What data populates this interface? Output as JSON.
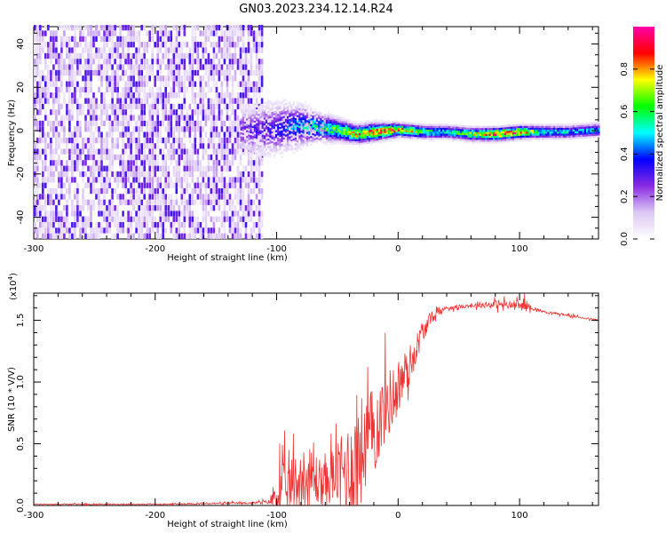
{
  "title": "GN03.2023.234.12.14.R24",
  "chart_data": [
    {
      "type": "heatmap",
      "xlabel": "Height of straight line (km)",
      "ylabel": "Frequency (Hz)",
      "xlim": [
        -300,
        165
      ],
      "ylim": [
        -50,
        48
      ],
      "xticks": [
        -300,
        -200,
        -100,
        0,
        100
      ],
      "yticks": [
        -40,
        -20,
        0,
        20,
        40
      ],
      "colorbar": {
        "label": "Normalized spectral amplitude",
        "range": [
          0,
          1
        ],
        "ticks": [
          "0.0",
          "0.2",
          "0.4",
          "0.6",
          "0.8"
        ],
        "colors": [
          "#ffffff",
          "#dcc8f4",
          "#8a2be2",
          "#0000ff",
          "#00ffff",
          "#00ff00",
          "#ffff00",
          "#ff0000",
          "#ff00aa"
        ]
      },
      "noise_region_x": [
        -300,
        -112
      ],
      "ridge": {
        "x": [
          -130,
          -110,
          -95,
          -80,
          -65,
          -50,
          -35,
          -20,
          0,
          20,
          40,
          60,
          80,
          100,
          120,
          140,
          165
        ],
        "freq": [
          0,
          0,
          1,
          2,
          1,
          0,
          -2,
          -1,
          0,
          -1,
          -1,
          -2,
          -2,
          -1,
          -1,
          -1,
          0
        ],
        "amplitude": [
          0.25,
          0.3,
          0.35,
          0.45,
          0.55,
          0.6,
          0.75,
          0.8,
          0.8,
          0.6,
          0.5,
          0.65,
          0.85,
          0.8,
          0.5,
          0.45,
          0.45
        ],
        "halfwidth": [
          10,
          12,
          11,
          9,
          6,
          5,
          4,
          4,
          3,
          3,
          3,
          3,
          3,
          3,
          3,
          3,
          3
        ]
      }
    },
    {
      "type": "line",
      "xlabel": "Height of straight line (km)",
      "ylabel": "SNR (10 * V/V)",
      "y_multiplier": "(x10",
      "y_multiplier_exp": "4",
      "y_multiplier_close": ")",
      "xlim": [
        -300,
        165
      ],
      "ylim": [
        0,
        1.72
      ],
      "xticks": [
        -300,
        -200,
        -100,
        0,
        100
      ],
      "yticks": [
        "0.0",
        "0.5",
        "1.0",
        "1.5"
      ],
      "color": "#ee3333",
      "series": [
        {
          "x": [
            -300,
            -200,
            -120,
            -105,
            -100,
            -90,
            -80,
            -70,
            -60,
            -50,
            -40,
            -30,
            -20,
            -10,
            0,
            10,
            20,
            30,
            40,
            60,
            80,
            100,
            105,
            110,
            120,
            140,
            165
          ],
          "y": [
            0.01,
            0.01,
            0.02,
            0.03,
            0.1,
            0.15,
            0.2,
            0.22,
            0.18,
            0.25,
            0.3,
            0.45,
            0.6,
            0.8,
            0.95,
            1.15,
            1.4,
            1.55,
            1.6,
            1.62,
            1.63,
            1.62,
            1.62,
            1.6,
            1.57,
            1.54,
            1.5
          ],
          "noise_amplitude": [
            0.005,
            0.005,
            0.01,
            0.02,
            0.3,
            0.25,
            0.35,
            0.3,
            0.2,
            0.3,
            0.5,
            0.55,
            0.45,
            0.35,
            0.3,
            0.2,
            0.1,
            0.05,
            0.02,
            0.02,
            0.04,
            0.05,
            0.06,
            0.02,
            0.01,
            0.01,
            0.01
          ]
        }
      ]
    }
  ]
}
